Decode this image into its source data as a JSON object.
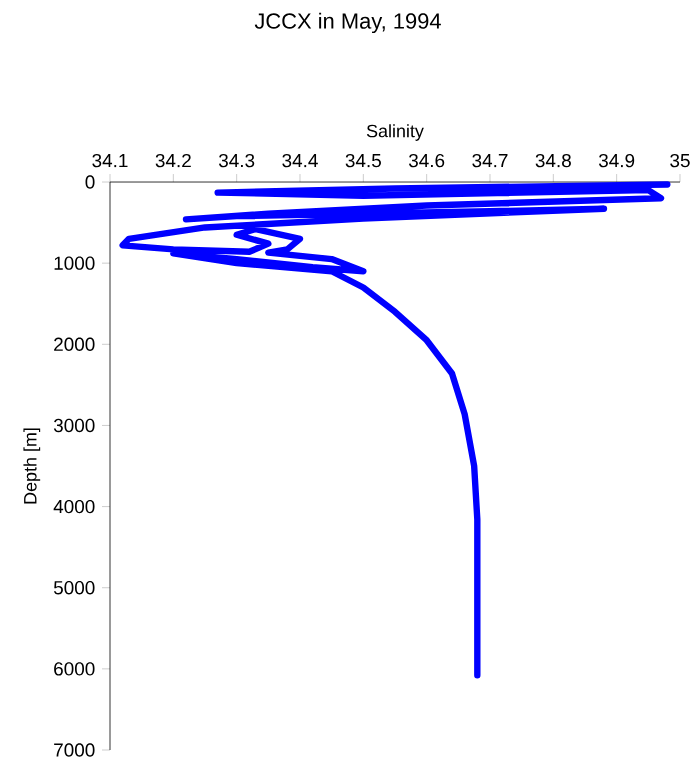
{
  "chart_data": {
    "type": "line",
    "title": "JCCX in May, 1994",
    "xlabel": "Salinity",
    "ylabel": "Depth [m]",
    "xlim": [
      34.1,
      35
    ],
    "ylim": [
      7000,
      0
    ],
    "xticks": [
      34.1,
      34.2,
      34.3,
      34.4,
      34.5,
      34.6,
      34.7,
      34.8,
      34.9,
      35
    ],
    "yticks": [
      0,
      1000,
      2000,
      3000,
      4000,
      5000,
      6000,
      7000
    ],
    "series": [
      {
        "color": "#0000ff",
        "x": [
          34.98,
          34.55,
          34.27,
          34.5,
          34.95,
          34.97,
          34.6,
          34.35,
          34.22,
          34.3,
          34.7,
          34.88,
          34.5,
          34.25,
          34.13,
          34.12,
          34.2,
          34.32,
          34.35,
          34.3,
          34.33,
          34.4,
          34.38,
          34.35,
          34.45,
          34.5,
          34.42,
          34.3,
          34.2,
          34.3,
          34.45,
          34.5,
          34.55,
          34.6,
          34.64,
          34.66,
          34.675,
          34.68,
          34.68
        ],
        "values": [
          30,
          80,
          130,
          170,
          100,
          200,
          290,
          390,
          460,
          420,
          360,
          330,
          450,
          560,
          700,
          780,
          830,
          860,
          760,
          650,
          580,
          700,
          830,
          870,
          950,
          1100,
          1050,
          950,
          880,
          1000,
          1100,
          1300,
          1600,
          1950,
          2360,
          2860,
          3500,
          4160,
          6080
        ]
      }
    ]
  }
}
